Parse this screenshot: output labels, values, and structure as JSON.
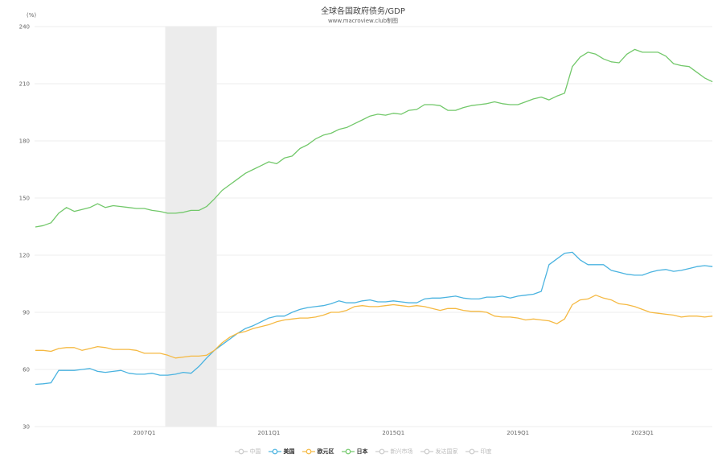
{
  "chart_data": {
    "type": "line",
    "title": "全球各国政府债务/GDP",
    "subtitle": "www.macroview.club制图",
    "ylabel": "(%)",
    "xlabel": "",
    "ylim": [
      30,
      240
    ],
    "yticks": [
      30,
      60,
      90,
      120,
      150,
      180,
      210,
      240
    ],
    "x_range": [
      "2003Q3",
      "2025Q2"
    ],
    "frequency": "quarterly",
    "xticks": [
      "2007Q1",
      "2011Q1",
      "2015Q1",
      "2019Q1",
      "2023Q1"
    ],
    "grid": true,
    "legend_position": "bottom",
    "shaded_period": [
      "2007Q4",
      "2009Q2"
    ],
    "legend": [
      {
        "name": "中国",
        "color": "#cccccc",
        "active": false
      },
      {
        "name": "美国",
        "color": "#4ab3e0",
        "active": true
      },
      {
        "name": "欧元区",
        "color": "#f5b942",
        "active": true
      },
      {
        "name": "日本",
        "color": "#72c86a",
        "active": true
      },
      {
        "name": "新兴市场",
        "color": "#cccccc",
        "active": false
      },
      {
        "name": "发达国家",
        "color": "#cccccc",
        "active": false
      },
      {
        "name": "印度",
        "color": "#cccccc",
        "active": false
      }
    ],
    "series": [
      {
        "name": "美国",
        "color": "#4ab3e0",
        "values": [
          52.2,
          52.5,
          53,
          59.5,
          59.5,
          59.5,
          60,
          60.5,
          59,
          58.5,
          59,
          59.5,
          58,
          57.5,
          57.5,
          58,
          57,
          57,
          57.5,
          58.5,
          58,
          61.5,
          66,
          70,
          73,
          76,
          79,
          81.5,
          83,
          85,
          87,
          88,
          88,
          90,
          91.5,
          92.5,
          93,
          93.5,
          94.5,
          96,
          95,
          95,
          96,
          96.5,
          95.5,
          95.5,
          96,
          95.5,
          95,
          95,
          97,
          97.5,
          97.5,
          98,
          98.5,
          97.5,
          97,
          97,
          98,
          98,
          98.5,
          97.5,
          98.5,
          99,
          99.5,
          101,
          115,
          118,
          121,
          121.5,
          117.5,
          115,
          115,
          115,
          112,
          111,
          110,
          109.5,
          109.5,
          111,
          112,
          112.5,
          111.5,
          112,
          113,
          114,
          114.5,
          114
        ]
      },
      {
        "name": "欧元区",
        "color": "#f5b942",
        "values": [
          70,
          70,
          69.5,
          71,
          71.5,
          71.5,
          70,
          71,
          72,
          71.5,
          70.5,
          70.5,
          70.5,
          70,
          68.5,
          68.5,
          68.5,
          67.5,
          66,
          66.5,
          67,
          67,
          67.5,
          70,
          74,
          77,
          79,
          80,
          81.5,
          82.5,
          83.5,
          85,
          86,
          86.5,
          87,
          87,
          87.5,
          88.5,
          90,
          90,
          91,
          93,
          93.5,
          93,
          93,
          93.5,
          94,
          93.5,
          93,
          93.5,
          93,
          92,
          91,
          92,
          92,
          91,
          90.5,
          90.5,
          90,
          88,
          87.5,
          87.5,
          87,
          86,
          86.5,
          86,
          85.5,
          84,
          86.5,
          94,
          96.5,
          97,
          99,
          97.5,
          96.5,
          94.5,
          94,
          93,
          91.5,
          90,
          89.5,
          89,
          88.5,
          87.5,
          88,
          88,
          87.5,
          88
        ]
      },
      {
        "name": "日本",
        "color": "#72c86a",
        "values": [
          134.8,
          135.5,
          137,
          142,
          145,
          143,
          144,
          145,
          147,
          145,
          146,
          145.5,
          145,
          144.5,
          144.5,
          143.5,
          143,
          142,
          142,
          142.5,
          143.5,
          143.5,
          145.5,
          149.5,
          154,
          157,
          160,
          163,
          165,
          167,
          169,
          168,
          171,
          172,
          176,
          178,
          181,
          183,
          184,
          186,
          187,
          189,
          191,
          193,
          194,
          193.5,
          194.5,
          194,
          196,
          196.5,
          199,
          199,
          198.5,
          196,
          196,
          197.5,
          198.5,
          199,
          199.5,
          200.5,
          199.5,
          199,
          199,
          200.5,
          202,
          203,
          201.5,
          203.5,
          205,
          219,
          224,
          226.5,
          225.5,
          223,
          221.5,
          221,
          225.5,
          228,
          226.5,
          226.5,
          226.5,
          224.5,
          220.5,
          219.5,
          219,
          216,
          213,
          211
        ]
      }
    ]
  }
}
